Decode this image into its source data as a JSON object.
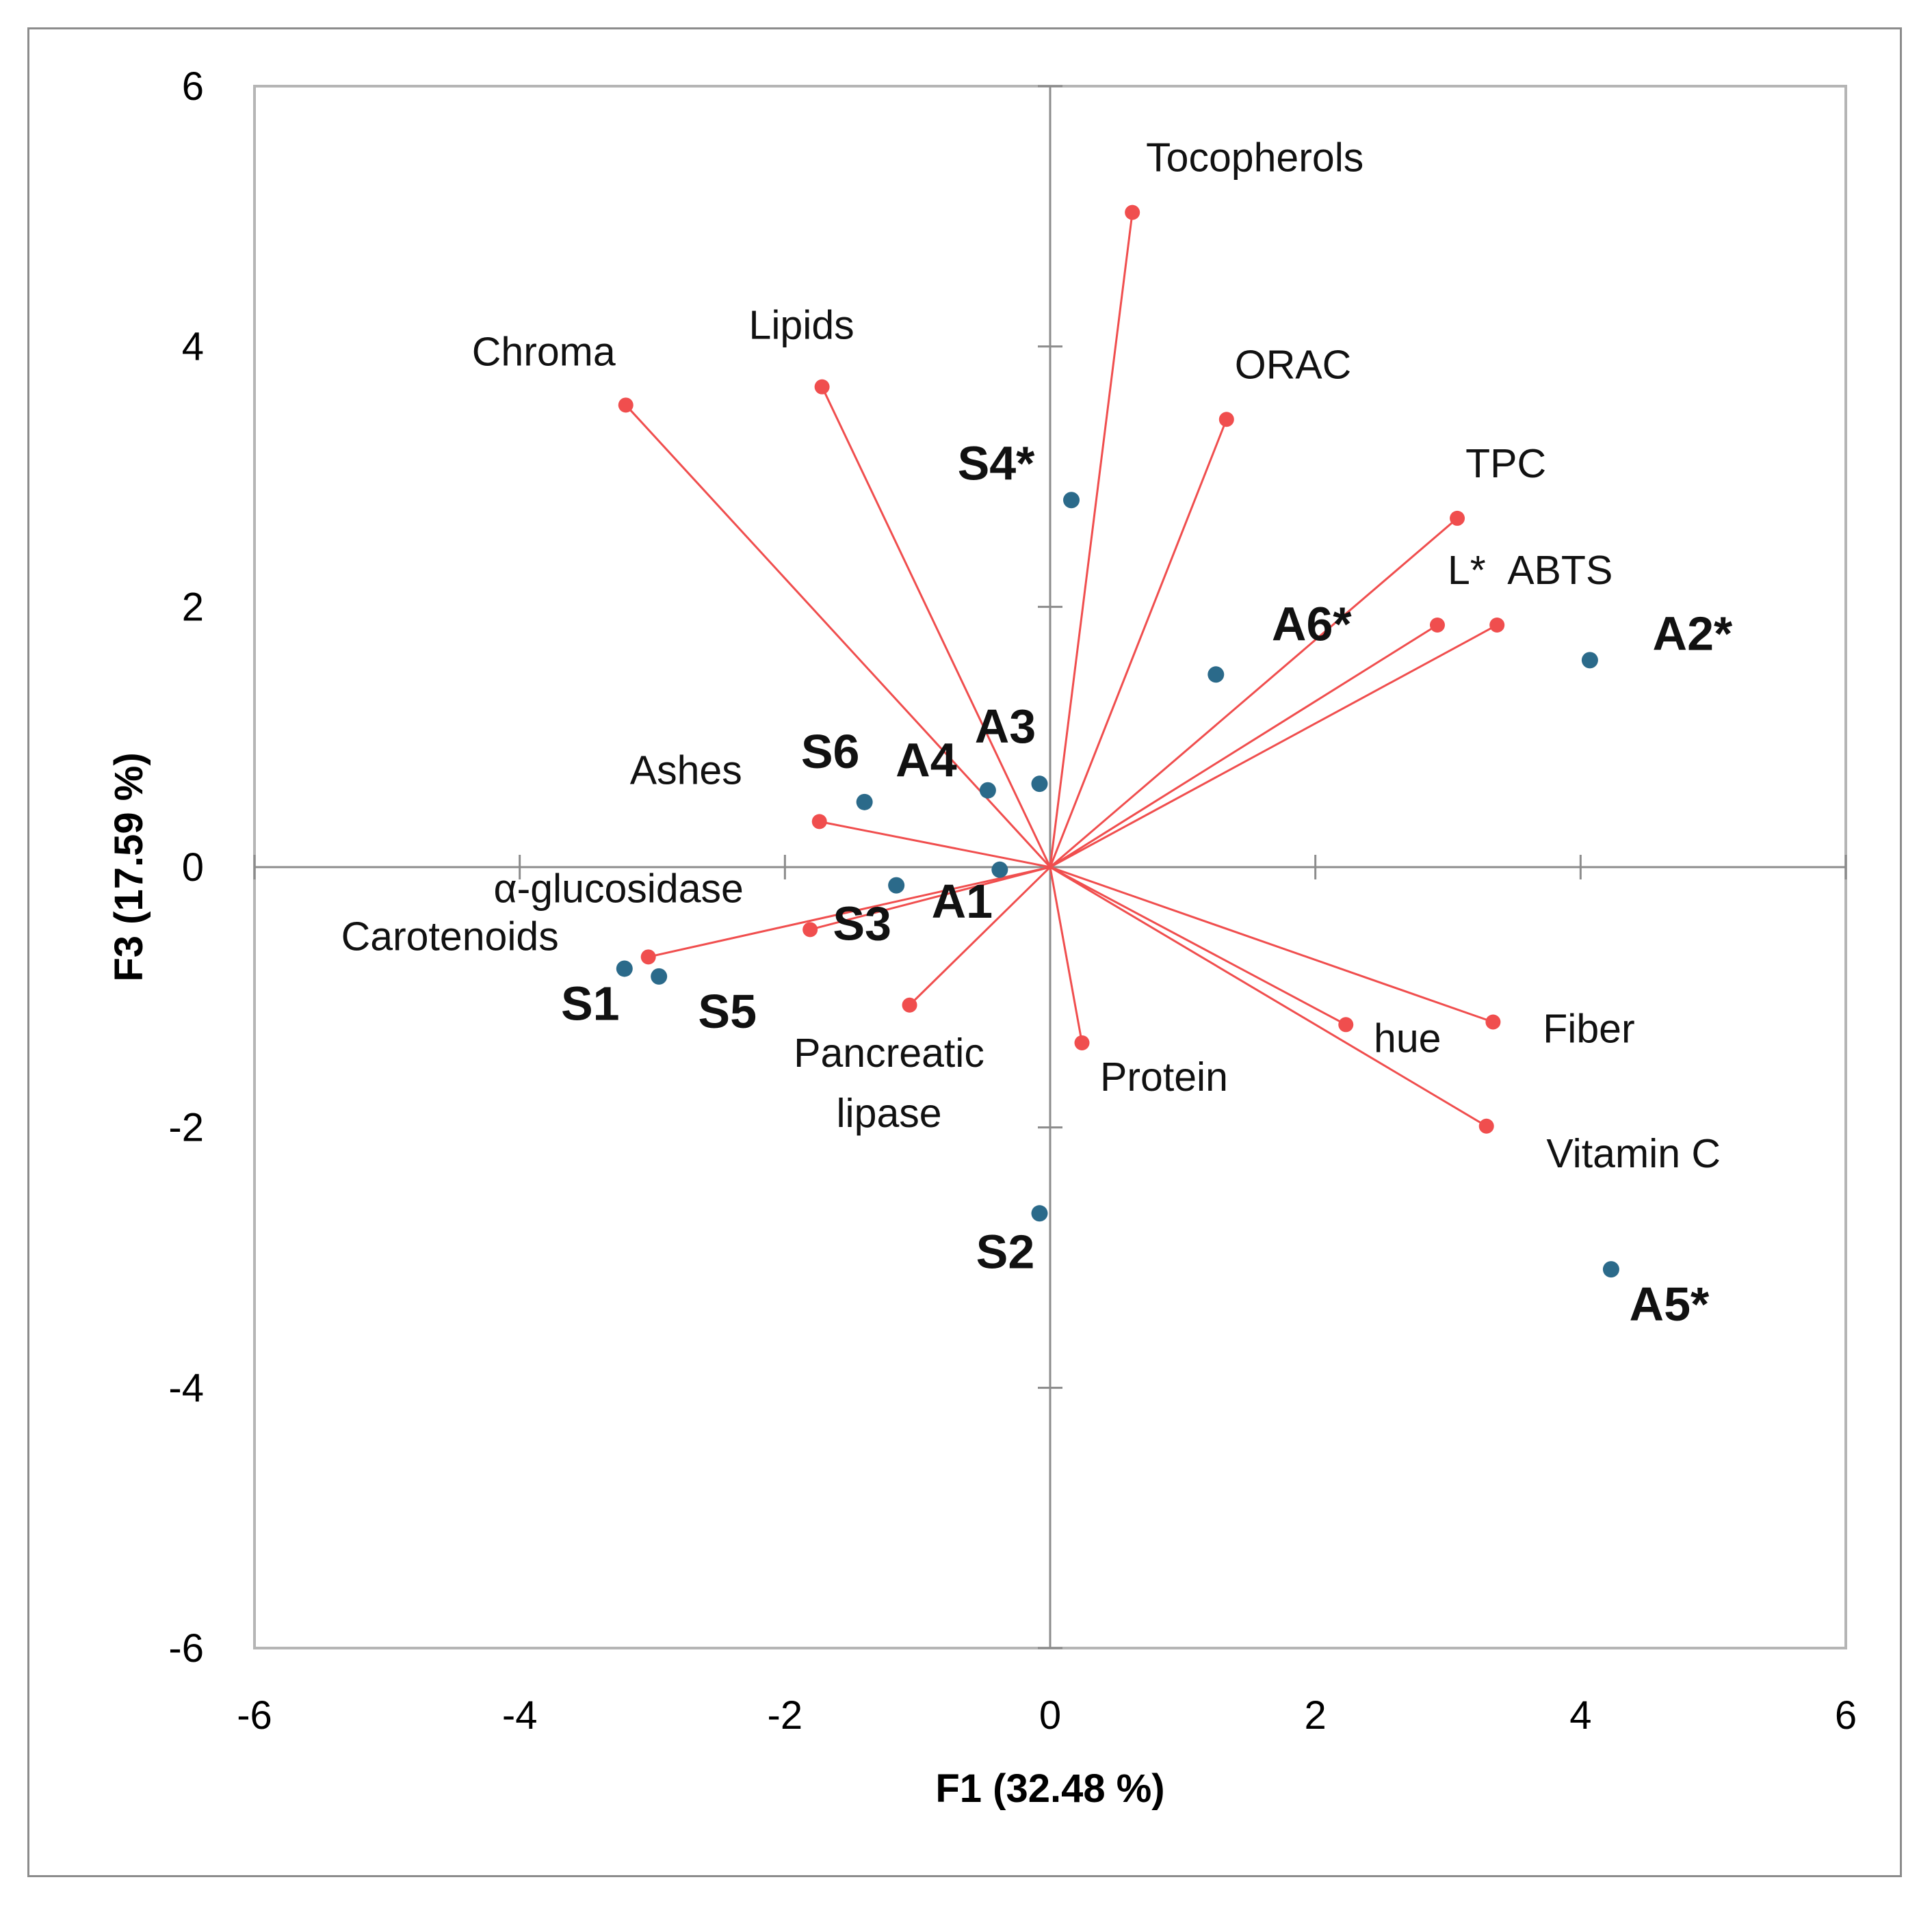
{
  "chart_data": {
    "type": "scatter",
    "subtype": "PCA biplot",
    "title": "",
    "xlabel": "F1 (32.48 %)",
    "ylabel": "F3 (17.59 %)",
    "xlim": [
      -6,
      6
    ],
    "ylim": [
      -6,
      6
    ],
    "xticks": [
      "-6",
      "-4",
      "-2",
      "0",
      "2",
      "4",
      "6"
    ],
    "yticks": [
      "-6",
      "-4",
      "-2",
      "0",
      "2",
      "4",
      "6"
    ],
    "grid": false,
    "colors": {
      "variables": "#f04e4e",
      "observations": "#2b6a8a",
      "axis": "#8c8c8c"
    },
    "variables": [
      {
        "name": "Tocopherols",
        "x": 0.62,
        "y": 5.03
      },
      {
        "name": "Lipids",
        "x": -1.72,
        "y": 3.69
      },
      {
        "name": "Chroma",
        "x": -3.2,
        "y": 3.55
      },
      {
        "name": "ORAC",
        "x": 1.33,
        "y": 3.44
      },
      {
        "name": "TPC",
        "x": 3.07,
        "y": 2.68
      },
      {
        "name": "L*",
        "x": 2.92,
        "y": 1.86
      },
      {
        "name": "ABTS",
        "x": 3.37,
        "y": 1.86
      },
      {
        "name": "Ashes",
        "x": -1.74,
        "y": 0.35
      },
      {
        "name": "α-glucosidase",
        "x": -1.81,
        "y": -0.48
      },
      {
        "name": "Carotenoids",
        "x": -3.03,
        "y": -0.69
      },
      {
        "name": "Pancreatic lipase",
        "x": -1.06,
        "y": -1.06
      },
      {
        "name": "Protein",
        "x": 0.24,
        "y": -1.35
      },
      {
        "name": "hue",
        "x": 2.23,
        "y": -1.21
      },
      {
        "name": "Fiber",
        "x": 3.34,
        "y": -1.19
      },
      {
        "name": "Vitamin C",
        "x": 3.29,
        "y": -1.99
      }
    ],
    "observations": [
      {
        "name": "S4*",
        "x": 0.16,
        "y": 2.82
      },
      {
        "name": "A6*",
        "x": 1.25,
        "y": 1.48
      },
      {
        "name": "A2*",
        "x": 4.07,
        "y": 1.59
      },
      {
        "name": "A3",
        "x": -0.08,
        "y": 0.64
      },
      {
        "name": "A4",
        "x": -0.47,
        "y": 0.59
      },
      {
        "name": "S6",
        "x": -1.4,
        "y": 0.5
      },
      {
        "name": "A1",
        "x": -0.38,
        "y": -0.02
      },
      {
        "name": "S3",
        "x": -1.16,
        "y": -0.14
      },
      {
        "name": "S1",
        "x": -3.21,
        "y": -0.78
      },
      {
        "name": "S5",
        "x": -2.95,
        "y": -0.84
      },
      {
        "name": "S2",
        "x": -0.08,
        "y": -2.66
      },
      {
        "name": "A5*",
        "x": 4.23,
        "y": -3.09
      }
    ]
  }
}
